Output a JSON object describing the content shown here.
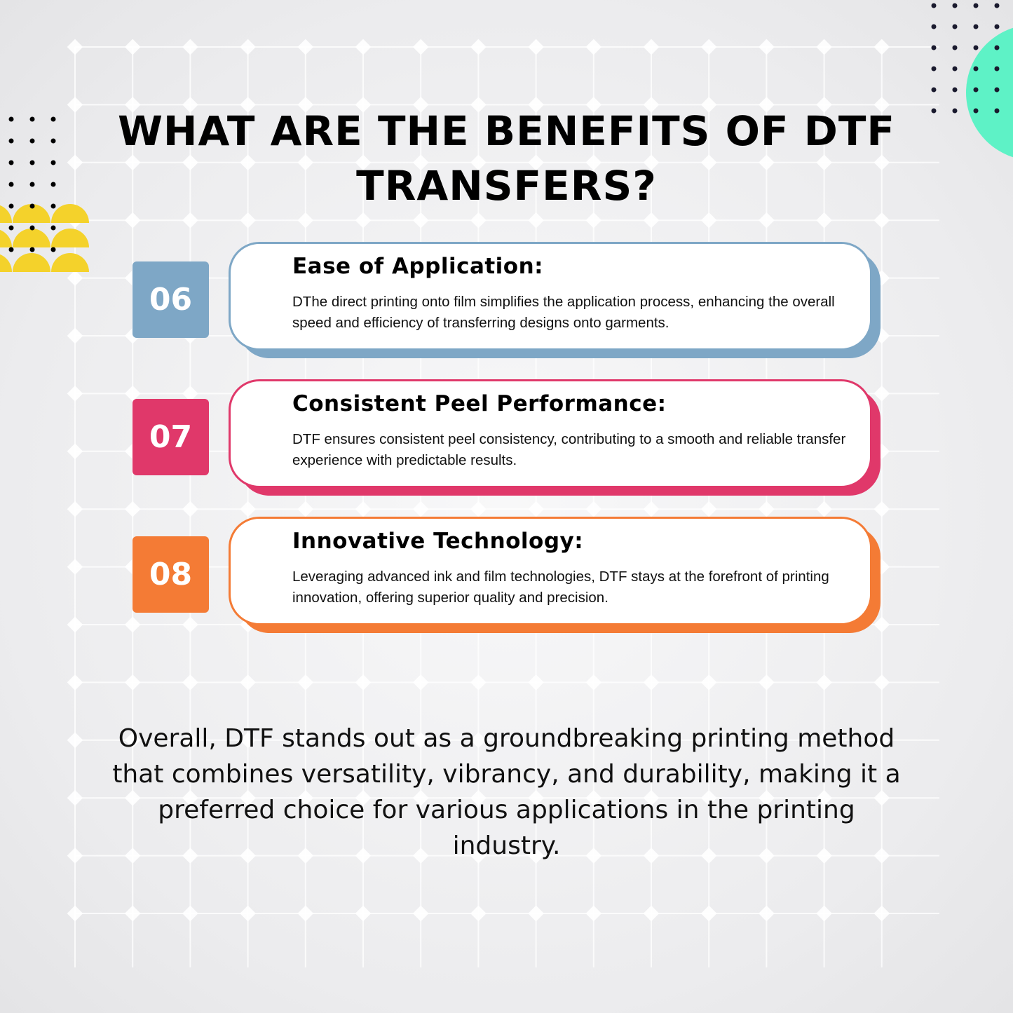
{
  "title": "WHAT ARE THE BENEFITS OF DTF TRANSFERS?",
  "colors": {
    "blue": "#7ea7c6",
    "pink": "#e0386a",
    "orange": "#f47b35",
    "yellow": "#f4d22b",
    "mint": "#5ef2c6"
  },
  "benefits": [
    {
      "number": "06",
      "heading": "Ease of Application:",
      "text": "DThe direct printing onto film simplifies the application process, enhancing the overall speed and efficiency of transferring designs onto garments.",
      "color": "#7ea7c6"
    },
    {
      "number": "07",
      "heading": "Consistent Peel Performance:",
      "text": "DTF ensures consistent peel consistency, contributing to a smooth and reliable transfer experience with predictable results.",
      "color": "#e0386a"
    },
    {
      "number": "08",
      "heading": "Innovative Technology:",
      "text": "Leveraging advanced ink and film technologies, DTF stays at the forefront of printing innovation, offering superior quality and precision.",
      "color": "#f47b35"
    }
  ],
  "summary": "Overall, DTF stands out as a groundbreaking printing method that combines versatility, vibrancy, and durability, making it a preferred choice for various applications in the printing industry."
}
